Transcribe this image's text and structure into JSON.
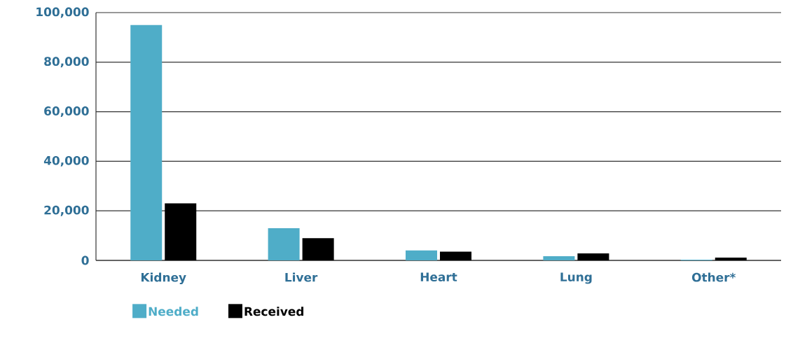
{
  "chart_data": {
    "type": "bar",
    "categories": [
      "Kidney",
      "Liver",
      "Heart",
      "Lung",
      "Other*"
    ],
    "series": [
      {
        "name": "Needed",
        "color": "#4fadc8",
        "values": [
          95000,
          13000,
          4000,
          1700,
          300
        ]
      },
      {
        "name": "Received",
        "color": "#000000",
        "values": [
          23000,
          9000,
          3500,
          2800,
          1100
        ]
      }
    ],
    "ylim": [
      0,
      100000
    ],
    "yticks": [
      {
        "value": 0,
        "label": "0"
      },
      {
        "value": 20000,
        "label": "20,000"
      },
      {
        "value": 40000,
        "label": "40,000"
      },
      {
        "value": 60000,
        "label": "60,000"
      },
      {
        "value": 80000,
        "label": "80,000"
      },
      {
        "value": 100000,
        "label": "100,000"
      }
    ],
    "grid": "y",
    "legend": "bottom left"
  }
}
